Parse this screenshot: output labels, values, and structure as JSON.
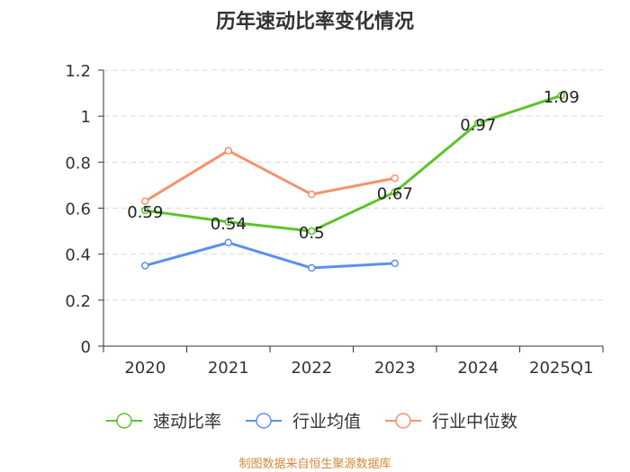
{
  "chart_data": {
    "type": "line",
    "title": "历年速动比率变化情况",
    "categories": [
      "2020",
      "2021",
      "2022",
      "2023",
      "2024",
      "2025Q1"
    ],
    "ylim": [
      0,
      1.2
    ],
    "yticks": [
      "0",
      "0.2",
      "0.4",
      "0.6",
      "0.8",
      "1",
      "1.2"
    ],
    "series": [
      {
        "name": "速动比率",
        "color": "#5cc42a",
        "values": [
          0.59,
          0.54,
          0.5,
          0.67,
          0.97,
          1.09
        ],
        "labels": [
          "0.59",
          "0.54",
          "0.5",
          "0.67",
          "0.97",
          "1.09"
        ]
      },
      {
        "name": "行业均值",
        "color": "#5b8ff0",
        "values": [
          0.35,
          0.45,
          0.34,
          0.36,
          null,
          null
        ]
      },
      {
        "name": "行业中位数",
        "color": "#f5936a",
        "values": [
          0.63,
          0.85,
          0.66,
          0.73,
          null,
          null
        ]
      }
    ],
    "legend_position": "bottom",
    "grid": true
  },
  "source": "制图数据来自恒生聚源数据库"
}
